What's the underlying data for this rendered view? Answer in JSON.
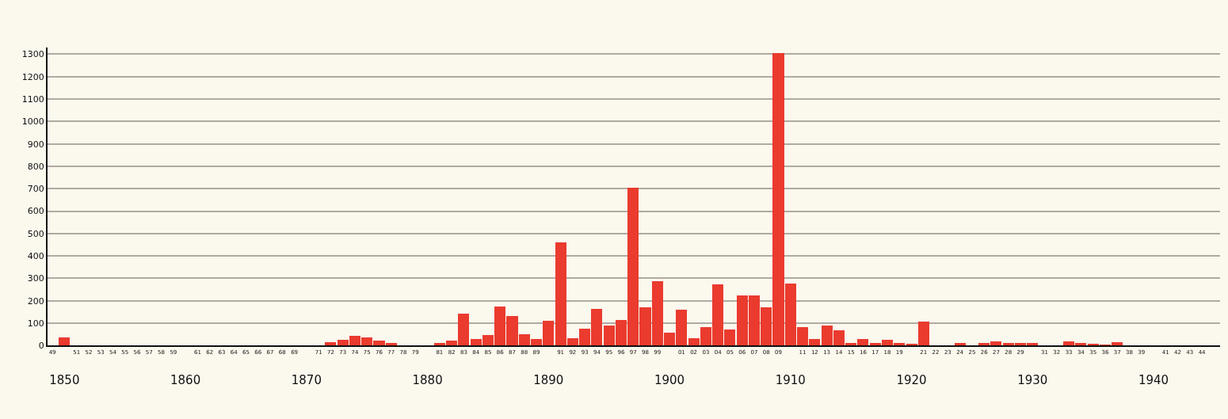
{
  "chart_data": {
    "type": "bar",
    "x": [
      1849,
      1850,
      1851,
      1852,
      1853,
      1854,
      1855,
      1856,
      1857,
      1858,
      1859,
      1860,
      1861,
      1862,
      1863,
      1864,
      1865,
      1866,
      1867,
      1868,
      1869,
      1870,
      1871,
      1872,
      1873,
      1874,
      1875,
      1876,
      1877,
      1878,
      1879,
      1880,
      1881,
      1882,
      1883,
      1884,
      1885,
      1886,
      1887,
      1888,
      1889,
      1890,
      1891,
      1892,
      1893,
      1894,
      1895,
      1896,
      1897,
      1898,
      1899,
      1900,
      1901,
      1902,
      1903,
      1904,
      1905,
      1906,
      1907,
      1908,
      1909,
      1910,
      1911,
      1912,
      1913,
      1914,
      1915,
      1916,
      1917,
      1918,
      1919,
      1920,
      1921,
      1922,
      1923,
      1924,
      1925,
      1926,
      1927,
      1928,
      1929,
      1930,
      1931,
      1932,
      1933,
      1934,
      1935,
      1936,
      1937,
      1938,
      1939,
      1940,
      1941,
      1942,
      1943,
      1944,
      1945
    ],
    "values": [
      0,
      35,
      0,
      0,
      0,
      0,
      0,
      0,
      0,
      0,
      0,
      0,
      0,
      0,
      0,
      0,
      0,
      0,
      0,
      0,
      0,
      0,
      0,
      15,
      25,
      45,
      35,
      23,
      12,
      0,
      0,
      0,
      10,
      22,
      144,
      28,
      48,
      175,
      131,
      51,
      29,
      112,
      460,
      33,
      77,
      163,
      91,
      113,
      704,
      171,
      286,
      59,
      160,
      33,
      82,
      272,
      72,
      222,
      224,
      172,
      1305,
      278,
      83,
      28,
      91,
      69,
      11,
      31,
      11,
      26,
      11,
      9,
      106,
      0,
      0,
      13,
      0,
      11,
      19,
      11,
      11,
      11,
      0,
      0,
      18,
      13,
      7,
      2,
      14,
      0,
      0,
      0,
      0,
      0,
      0,
      0,
      0
    ],
    "color": "#ea3b2e",
    "xlim": [
      1848.6,
      1945.5
    ],
    "ylim": [
      0,
      1330
    ],
    "yticks": [
      0,
      100,
      200,
      300,
      400,
      500,
      600,
      700,
      800,
      900,
      1000,
      1100,
      1200,
      1300
    ],
    "xticks": [
      {
        "value": 1849,
        "label": "49"
      },
      {
        "value": 1851,
        "label": "51"
      },
      {
        "value": 1852,
        "label": "52"
      },
      {
        "value": 1853,
        "label": "53"
      },
      {
        "value": 1854,
        "label": "54"
      },
      {
        "value": 1855,
        "label": "55"
      },
      {
        "value": 1856,
        "label": "56"
      },
      {
        "value": 1857,
        "label": "57"
      },
      {
        "value": 1858,
        "label": "58"
      },
      {
        "value": 1859,
        "label": "59"
      },
      {
        "value": 1861,
        "label": "61"
      },
      {
        "value": 1862,
        "label": "62"
      },
      {
        "value": 1863,
        "label": "63"
      },
      {
        "value": 1864,
        "label": "64"
      },
      {
        "value": 1865,
        "label": "65"
      },
      {
        "value": 1866,
        "label": "66"
      },
      {
        "value": 1867,
        "label": "67"
      },
      {
        "value": 1868,
        "label": "68"
      },
      {
        "value": 1869,
        "label": "69"
      },
      {
        "value": 1871,
        "label": "71"
      },
      {
        "value": 1872,
        "label": "72"
      },
      {
        "value": 1873,
        "label": "73"
      },
      {
        "value": 1874,
        "label": "74"
      },
      {
        "value": 1875,
        "label": "75"
      },
      {
        "value": 1876,
        "label": "76"
      },
      {
        "value": 1877,
        "label": "77"
      },
      {
        "value": 1878,
        "label": "78"
      },
      {
        "value": 1879,
        "label": "79"
      },
      {
        "value": 1881,
        "label": "81"
      },
      {
        "value": 1882,
        "label": "82"
      },
      {
        "value": 1883,
        "label": "83"
      },
      {
        "value": 1884,
        "label": "84"
      },
      {
        "value": 1885,
        "label": "85"
      },
      {
        "value": 1886,
        "label": "86"
      },
      {
        "value": 1887,
        "label": "87"
      },
      {
        "value": 1888,
        "label": "88"
      },
      {
        "value": 1889,
        "label": "89"
      },
      {
        "value": 1891,
        "label": "91"
      },
      {
        "value": 1892,
        "label": "92"
      },
      {
        "value": 1893,
        "label": "93"
      },
      {
        "value": 1894,
        "label": "94"
      },
      {
        "value": 1895,
        "label": "95"
      },
      {
        "value": 1896,
        "label": "96"
      },
      {
        "value": 1897,
        "label": "97"
      },
      {
        "value": 1898,
        "label": "98"
      },
      {
        "value": 1899,
        "label": "99"
      },
      {
        "value": 1901,
        "label": "01"
      },
      {
        "value": 1902,
        "label": "02"
      },
      {
        "value": 1903,
        "label": "03"
      },
      {
        "value": 1904,
        "label": "04"
      },
      {
        "value": 1905,
        "label": "05"
      },
      {
        "value": 1906,
        "label": "06"
      },
      {
        "value": 1907,
        "label": "07"
      },
      {
        "value": 1908,
        "label": "08"
      },
      {
        "value": 1909,
        "label": "09"
      },
      {
        "value": 1911,
        "label": "11"
      },
      {
        "value": 1912,
        "label": "12"
      },
      {
        "value": 1913,
        "label": "13"
      },
      {
        "value": 1914,
        "label": "14"
      },
      {
        "value": 1915,
        "label": "15"
      },
      {
        "value": 1916,
        "label": "16"
      },
      {
        "value": 1917,
        "label": "17"
      },
      {
        "value": 1918,
        "label": "18"
      },
      {
        "value": 1919,
        "label": "19"
      },
      {
        "value": 1921,
        "label": "21"
      },
      {
        "value": 1922,
        "label": "22"
      },
      {
        "value": 1923,
        "label": "23"
      },
      {
        "value": 1924,
        "label": "24"
      },
      {
        "value": 1925,
        "label": "25"
      },
      {
        "value": 1926,
        "label": "26"
      },
      {
        "value": 1927,
        "label": "27"
      },
      {
        "value": 1928,
        "label": "28"
      },
      {
        "value": 1929,
        "label": "29"
      },
      {
        "value": 1931,
        "label": "31"
      },
      {
        "value": 1932,
        "label": "32"
      },
      {
        "value": 1933,
        "label": "33"
      },
      {
        "value": 1934,
        "label": "34"
      },
      {
        "value": 1935,
        "label": "35"
      },
      {
        "value": 1936,
        "label": "36"
      },
      {
        "value": 1937,
        "label": "37"
      },
      {
        "value": 1938,
        "label": "38"
      },
      {
        "value": 1939,
        "label": "39"
      },
      {
        "value": 1941,
        "label": "41"
      },
      {
        "value": 1942,
        "label": "42"
      },
      {
        "value": 1943,
        "label": "43"
      },
      {
        "value": 1944,
        "label": "44"
      }
    ],
    "x2lim": [
      1848.6,
      1945.5
    ],
    "x2ticks": [
      1850,
      1860,
      1870,
      1880,
      1890,
      1900,
      1910,
      1920,
      1930,
      1940
    ],
    "grid": "y"
  }
}
